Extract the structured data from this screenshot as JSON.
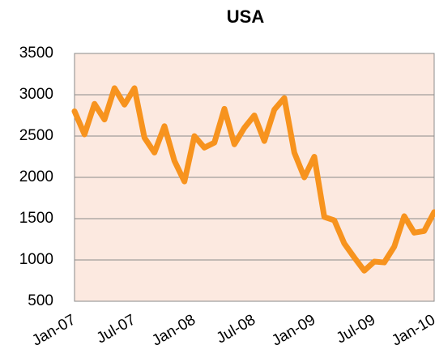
{
  "chart_data": {
    "type": "line",
    "title": "USA",
    "categories": [
      "Jan-07",
      null,
      null,
      null,
      null,
      null,
      "Jul-07",
      null,
      null,
      null,
      null,
      null,
      "Jan-08",
      null,
      null,
      null,
      null,
      null,
      "Jul-08",
      null,
      null,
      null,
      null,
      null,
      "Jan-09",
      null,
      null,
      null,
      null,
      null,
      "Jul-09",
      null,
      null,
      null,
      null,
      null,
      "Jan-10"
    ],
    "series": [
      {
        "name": "USA",
        "color": "#f7931e",
        "values": [
          2800,
          2520,
          2890,
          2700,
          3080,
          2880,
          3080,
          2480,
          2300,
          2620,
          2200,
          1950,
          2500,
          2360,
          2420,
          2830,
          2400,
          2600,
          2750,
          2440,
          2820,
          2960,
          2300,
          2000,
          2250,
          1520,
          1480,
          1200,
          1030,
          870,
          980,
          970,
          1160,
          1530,
          1330,
          1350,
          1580
        ]
      }
    ],
    "ylim": [
      500,
      3500
    ],
    "yticks": [
      500,
      1000,
      1500,
      2000,
      2500,
      3000,
      3500
    ],
    "grid": true
  }
}
